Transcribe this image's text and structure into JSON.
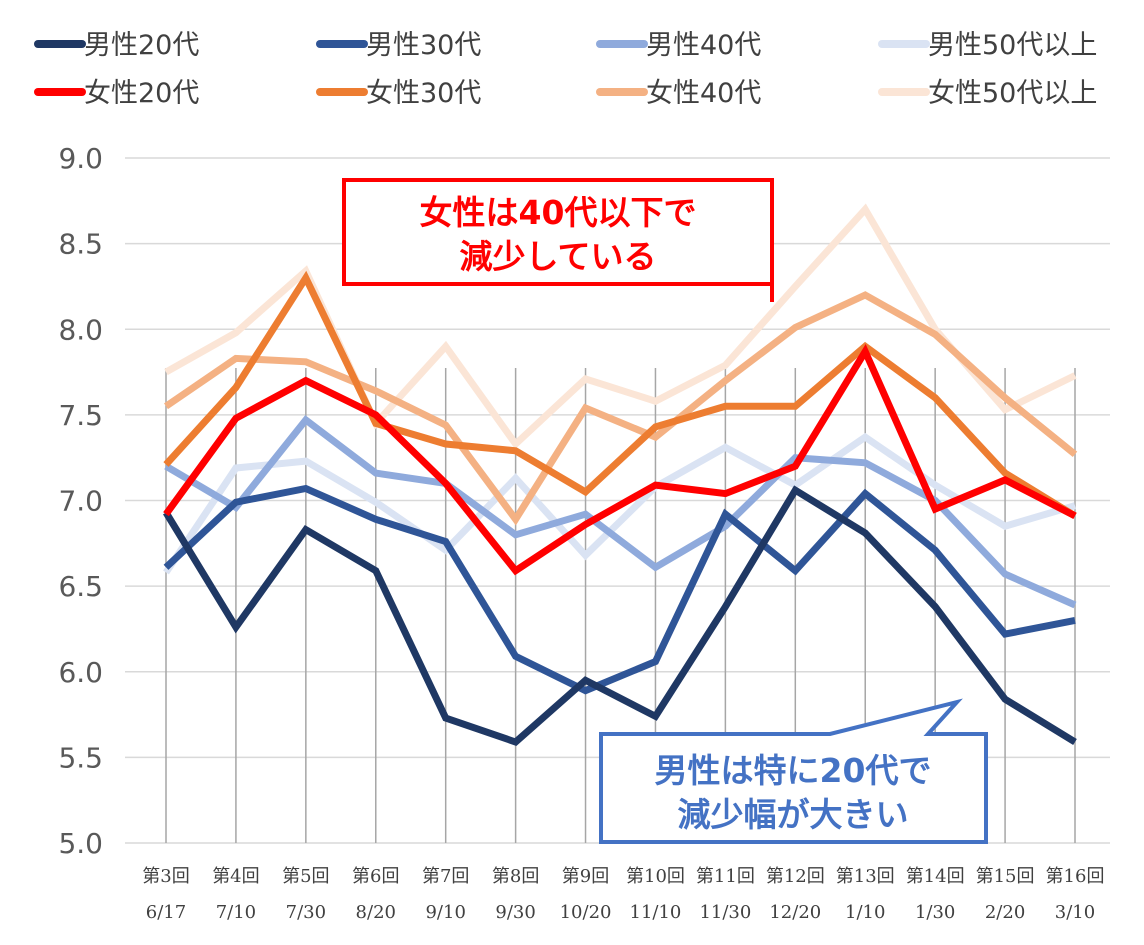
{
  "chart_data": {
    "type": "line",
    "title": "",
    "xlabel": "",
    "ylabel": "",
    "ylim": [
      5.0,
      9.0
    ],
    "yticks": [
      "9.0",
      "8.5",
      "8.0",
      "7.5",
      "7.0",
      "6.5",
      "6.0",
      "5.5",
      "5.0"
    ],
    "grid": "horizontal",
    "legend_position": "top",
    "categories": [
      {
        "round": "第3回",
        "date": "6/17"
      },
      {
        "round": "第4回",
        "date": "7/10"
      },
      {
        "round": "第5回",
        "date": "7/30"
      },
      {
        "round": "第6回",
        "date": "8/20"
      },
      {
        "round": "第7回",
        "date": "9/10"
      },
      {
        "round": "第8回",
        "date": "9/30"
      },
      {
        "round": "第9回",
        "date": "10/20"
      },
      {
        "round": "第10回",
        "date": "11/10"
      },
      {
        "round": "第11回",
        "date": "11/30"
      },
      {
        "round": "第12回",
        "date": "12/20"
      },
      {
        "round": "第13回",
        "date": "1/10"
      },
      {
        "round": "第14回",
        "date": "1/30"
      },
      {
        "round": "第15回",
        "date": "2/20"
      },
      {
        "round": "第16回",
        "date": "3/10"
      }
    ],
    "series": [
      {
        "name": "男性20代",
        "color": "#1f3864",
        "values": [
          6.93,
          6.26,
          6.83,
          6.59,
          5.73,
          5.59,
          5.95,
          5.74,
          6.38,
          7.06,
          6.81,
          6.38,
          5.84,
          5.59
        ]
      },
      {
        "name": "男性30代",
        "color": "#2f5597",
        "values": [
          6.61,
          6.99,
          7.07,
          6.89,
          6.76,
          6.09,
          5.89,
          6.06,
          6.92,
          6.59,
          7.04,
          6.71,
          6.22,
          6.3
        ]
      },
      {
        "name": "男性40代",
        "color": "#8faadc",
        "values": [
          7.2,
          6.96,
          7.47,
          7.16,
          7.1,
          6.8,
          6.92,
          6.61,
          6.85,
          7.25,
          7.22,
          7.0,
          6.57,
          6.39
        ]
      },
      {
        "name": "男性50代以上",
        "color": "#dae3f3",
        "values": [
          6.58,
          7.19,
          7.23,
          6.99,
          6.71,
          7.13,
          6.68,
          7.08,
          7.31,
          7.09,
          7.37,
          7.09,
          6.85,
          6.97
        ]
      },
      {
        "name": "女性20代",
        "color": "#ff0000",
        "values": [
          6.92,
          7.48,
          7.7,
          7.5,
          7.1,
          6.59,
          6.86,
          7.09,
          7.04,
          7.2,
          7.87,
          6.95,
          7.12,
          6.91
        ]
      },
      {
        "name": "女性30代",
        "color": "#ed7d31",
        "values": [
          7.21,
          7.66,
          8.3,
          7.45,
          7.33,
          7.29,
          7.05,
          7.43,
          7.55,
          7.55,
          7.9,
          7.6,
          7.16,
          6.91
        ]
      },
      {
        "name": "女性40代",
        "color": "#f4b183",
        "values": [
          7.55,
          7.83,
          7.81,
          7.64,
          7.44,
          6.89,
          7.54,
          7.37,
          7.7,
          8.01,
          8.2,
          7.97,
          7.6,
          7.27
        ]
      },
      {
        "name": "女性50代以上",
        "color": "#fbe5d6",
        "values": [
          7.75,
          7.98,
          8.34,
          7.45,
          7.9,
          7.33,
          7.71,
          7.58,
          7.79,
          8.25,
          8.7,
          8.0,
          7.53,
          7.73
        ]
      }
    ],
    "annotations": [
      {
        "text_line1": "女性は40代以下で",
        "text_line2": "減少している",
        "text_color": "#ff0000",
        "border_color": "#ff0000"
      },
      {
        "text_line1": "男性は特に20代で",
        "text_line2": "減少幅が大きい",
        "text_color": "#4472c4",
        "border_color": "#4472c4"
      }
    ]
  }
}
